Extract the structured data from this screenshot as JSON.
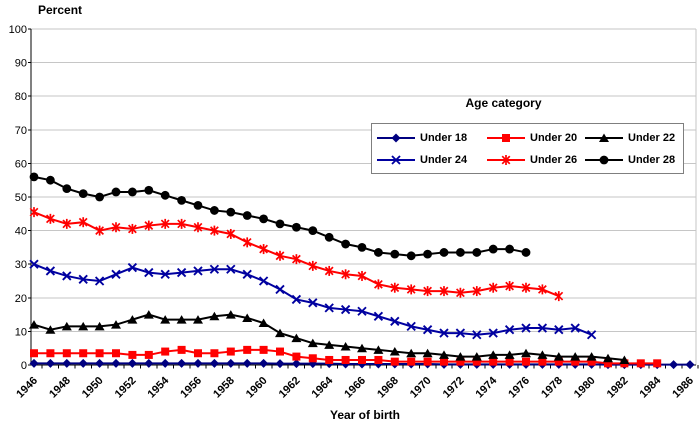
{
  "chart": {
    "y_axis_title": "Percent",
    "x_axis_title": "Year of birth",
    "legend_title": "Age category"
  },
  "chart_data": {
    "type": "line",
    "title": "",
    "xlabel": "Year of birth",
    "ylabel": "Percent",
    "ylim": [
      0,
      100
    ],
    "yticks": [
      0,
      10,
      20,
      30,
      40,
      50,
      60,
      70,
      80,
      90,
      100
    ],
    "grid": "horizontal",
    "legend_title": "Age category",
    "legend_position": "inside-top-right",
    "x": [
      1946,
      1947,
      1948,
      1949,
      1950,
      1951,
      1952,
      1953,
      1954,
      1955,
      1956,
      1957,
      1958,
      1959,
      1960,
      1961,
      1962,
      1963,
      1964,
      1965,
      1966,
      1967,
      1968,
      1969,
      1970,
      1971,
      1972,
      1973,
      1974,
      1975,
      1976,
      1977,
      1978,
      1979,
      1980,
      1981,
      1982,
      1983,
      1984,
      1985,
      1986
    ],
    "xtick_labels": [
      "1946",
      "1948",
      "1950",
      "1952",
      "1954",
      "1956",
      "1958",
      "1960",
      "1962",
      "1964",
      "1966",
      "1968",
      "1970",
      "1972",
      "1974",
      "1976",
      "1978",
      "1980",
      "1982",
      "1984",
      "1986"
    ],
    "series": [
      {
        "name": "Under 18",
        "color": "#000080",
        "marker": "diamond",
        "values": [
          0.5,
          0.5,
          0.5,
          0.5,
          0.5,
          0.5,
          0.5,
          0.5,
          0.5,
          0.5,
          0.5,
          0.5,
          0.5,
          0.5,
          0.5,
          0.4,
          0.4,
          0.4,
          0.4,
          0.3,
          0.3,
          0.3,
          0.3,
          0.3,
          0.3,
          0.2,
          0.2,
          0.2,
          0.2,
          0.2,
          0.2,
          0.2,
          0.2,
          0.2,
          0.2,
          0.1,
          0.1,
          0.1,
          0.1,
          0.1,
          0.1
        ]
      },
      {
        "name": "Under 20",
        "color": "#FF0000",
        "marker": "square",
        "values": [
          3.5,
          3.5,
          3.5,
          3.5,
          3.5,
          3.5,
          3,
          3,
          4,
          4.5,
          3.5,
          3.5,
          4,
          4.5,
          4.5,
          4,
          2.5,
          2,
          1.5,
          1.5,
          1.5,
          1.5,
          1,
          1,
          1,
          1,
          1,
          1,
          1,
          1,
          1,
          1,
          1,
          1,
          1,
          0.5,
          0.5,
          0.5,
          0.5
        ]
      },
      {
        "name": "Under 22",
        "color": "#000000",
        "marker": "triangle",
        "values": [
          12,
          10.5,
          11.5,
          11.5,
          11.5,
          12,
          13.5,
          15,
          13.5,
          13.5,
          13.5,
          14.5,
          15,
          14,
          12.5,
          9.5,
          8,
          6.5,
          6,
          5.5,
          5,
          4.5,
          4,
          3.5,
          3.5,
          3,
          2.5,
          2.5,
          3,
          3,
          3.5,
          3,
          2.5,
          2.5,
          2.5,
          2,
          1.5
        ]
      },
      {
        "name": "Under 24",
        "color": "#0000A0",
        "marker": "x",
        "values": [
          30,
          28,
          26.5,
          25.5,
          25,
          27,
          29,
          27.5,
          27,
          27.5,
          28,
          28.5,
          28.5,
          27,
          25,
          22.5,
          19.5,
          18.5,
          17,
          16.5,
          16,
          14.5,
          13,
          11.5,
          10.5,
          9.5,
          9.5,
          9,
          9.5,
          10.5,
          11,
          11,
          10.5,
          11,
          9
        ]
      },
      {
        "name": "Under 26",
        "color": "#FF0000",
        "marker": "asterisk",
        "values": [
          45.5,
          43.5,
          42,
          42.5,
          40,
          41,
          40.5,
          41.5,
          42,
          42,
          41,
          40,
          39,
          36.5,
          34.5,
          32.5,
          31.5,
          29.5,
          28,
          27,
          26.5,
          24,
          23,
          22.5,
          22,
          22,
          21.5,
          22,
          23,
          23.5,
          23,
          22.5,
          20.5
        ]
      },
      {
        "name": "Under 28",
        "color": "#000000",
        "marker": "circle",
        "values": [
          56,
          55,
          52.5,
          51,
          50,
          51.5,
          51.5,
          52,
          50.5,
          49,
          47.5,
          46,
          45.5,
          44.5,
          43.5,
          42,
          41,
          40,
          38,
          36,
          35,
          33.5,
          33,
          32.5,
          33,
          33.5,
          33.5,
          33.5,
          34.5,
          34.5,
          33.5
        ]
      }
    ]
  }
}
